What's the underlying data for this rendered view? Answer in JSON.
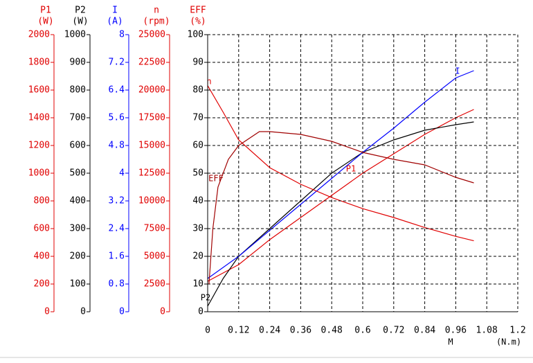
{
  "chart_data": {
    "type": "line",
    "xlabel": "M",
    "xunit": "(N.m)",
    "xlim": [
      0,
      1.2
    ],
    "xticks": [
      0,
      0.12,
      0.24,
      0.36,
      0.48,
      0.6,
      0.72,
      0.84,
      0.96,
      1.08,
      1.2
    ],
    "grid": true,
    "axes": [
      {
        "label": "P1",
        "unit": "(W)",
        "color": "#e00000",
        "lim": [
          0,
          2000
        ],
        "ticks": [
          0,
          200,
          400,
          600,
          800,
          1000,
          1200,
          1400,
          1600,
          1800,
          2000
        ],
        "series": {
          "name": "P1",
          "color": "#e00000",
          "x": [
            0,
            0.12,
            0.24,
            0.36,
            0.48,
            0.6,
            0.72,
            0.84,
            0.96,
            1.03
          ],
          "values": [
            220,
            340,
            520,
            680,
            840,
            1000,
            1140,
            1280,
            1400,
            1460
          ]
        }
      },
      {
        "label": "P2",
        "unit": "(W)",
        "color": "#000000",
        "lim": [
          0,
          1000
        ],
        "ticks": [
          0,
          100,
          200,
          300,
          400,
          500,
          600,
          700,
          800,
          900,
          1000
        ],
        "series": {
          "name": "P2",
          "color": "#000000",
          "x": [
            0,
            0.06,
            0.12,
            0.24,
            0.36,
            0.48,
            0.6,
            0.72,
            0.84,
            0.96,
            1.03
          ],
          "values": [
            20,
            120,
            200,
            300,
            400,
            500,
            575,
            620,
            655,
            675,
            685
          ]
        }
      },
      {
        "label": "I",
        "unit": "(A)",
        "color": "#0000ff",
        "lim": [
          0,
          8
        ],
        "ticks": [
          0,
          0.8,
          1.6,
          2.4,
          3.2,
          4,
          4.8,
          5.6,
          6.4,
          7.2,
          8
        ],
        "series": {
          "name": "I",
          "color": "#0000ff",
          "x": [
            0,
            0.12,
            0.24,
            0.36,
            0.48,
            0.6,
            0.72,
            0.84,
            0.96,
            1.03
          ],
          "values": [
            0.96,
            1.6,
            2.35,
            3.1,
            3.85,
            4.6,
            5.3,
            6.05,
            6.75,
            6.96
          ]
        }
      },
      {
        "label": "n",
        "unit": "(rpm)",
        "color": "#e00000",
        "lim": [
          0,
          25000
        ],
        "ticks": [
          0,
          2500,
          5000,
          7500,
          10000,
          12500,
          15000,
          17500,
          20000,
          22500,
          25000
        ],
        "series": {
          "name": "n",
          "color": "#e00000",
          "x": [
            0,
            0.06,
            0.12,
            0.24,
            0.36,
            0.48,
            0.6,
            0.72,
            0.84,
            0.96,
            1.03
          ],
          "values": [
            20400,
            18000,
            15500,
            13000,
            11500,
            10300,
            9300,
            8500,
            7600,
            6800,
            6400
          ]
        }
      },
      {
        "label": "EFF",
        "unit": "(%)",
        "color": "#000000",
        "lim": [
          0,
          100
        ],
        "ticks": [
          0,
          10,
          20,
          30,
          40,
          50,
          60,
          70,
          80,
          90,
          100
        ],
        "series": {
          "name": "EFF",
          "color": "#a00000",
          "x": [
            0.005,
            0.02,
            0.04,
            0.08,
            0.12,
            0.2,
            0.24,
            0.36,
            0.48,
            0.6,
            0.72,
            0.84,
            0.96,
            1.03
          ],
          "values": [
            10,
            30,
            45,
            55,
            60,
            65,
            65,
            64,
            61.5,
            57.5,
            55,
            53,
            48.5,
            46.5
          ]
        }
      }
    ]
  }
}
